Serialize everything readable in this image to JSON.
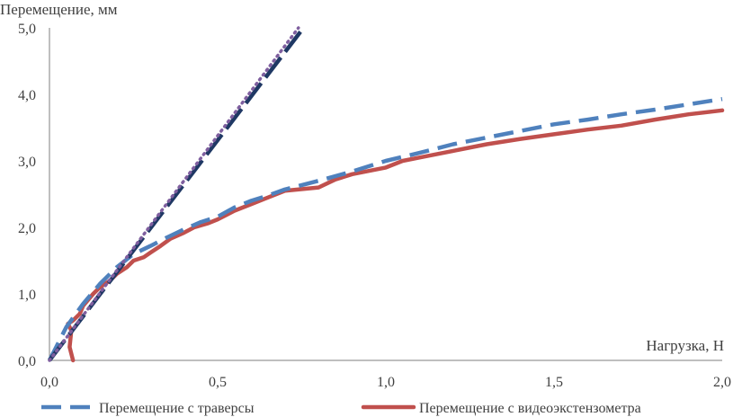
{
  "chart_data": {
    "type": "line",
    "xlabel": "Нагрузка, Н",
    "ylabel": "Перемещение, мм",
    "xlim": [
      0,
      2
    ],
    "ylim": [
      0,
      5
    ],
    "x_ticks": [
      "0,0",
      "0,5",
      "1,0",
      "1,5",
      "2,0"
    ],
    "y_ticks": [
      "0,0",
      "1,0",
      "2,0",
      "3,0",
      "4,0",
      "5,0"
    ],
    "grid": false,
    "legend_position": "bottom",
    "series": [
      {
        "name": "Перемещение с траверсы",
        "color": "#4f81bd",
        "style": "dashed",
        "x": [
          0.0,
          0.05,
          0.1,
          0.15,
          0.2,
          0.25,
          0.3,
          0.35,
          0.4,
          0.45,
          0.5,
          0.55,
          0.6,
          0.65,
          0.7,
          0.8,
          0.9,
          1.0,
          1.1,
          1.2,
          1.3,
          1.4,
          1.5,
          1.6,
          1.7,
          1.8,
          1.9,
          2.0
        ],
        "y": [
          0.0,
          0.5,
          0.85,
          1.15,
          1.4,
          1.6,
          1.72,
          1.85,
          1.97,
          2.08,
          2.16,
          2.3,
          2.4,
          2.48,
          2.57,
          2.7,
          2.84,
          3.0,
          3.12,
          3.25,
          3.35,
          3.45,
          3.55,
          3.62,
          3.7,
          3.77,
          3.85,
          3.93
        ]
      },
      {
        "name": "Перемещение с видеоэкстензометра",
        "color": "#c0504d",
        "style": "solid",
        "x": [
          0.07,
          0.06,
          0.065,
          0.055,
          0.07,
          0.09,
          0.1,
          0.13,
          0.15,
          0.18,
          0.2,
          0.23,
          0.25,
          0.28,
          0.3,
          0.33,
          0.36,
          0.4,
          0.43,
          0.47,
          0.5,
          0.55,
          0.6,
          0.65,
          0.7,
          0.8,
          0.85,
          0.9,
          1.0,
          1.05,
          1.1,
          1.2,
          1.3,
          1.4,
          1.5,
          1.6,
          1.7,
          1.8,
          1.9,
          2.0
        ],
        "y": [
          0.0,
          0.2,
          0.45,
          0.55,
          0.6,
          0.7,
          0.82,
          1.0,
          1.1,
          1.2,
          1.3,
          1.4,
          1.5,
          1.55,
          1.62,
          1.72,
          1.83,
          1.92,
          2.0,
          2.06,
          2.12,
          2.25,
          2.35,
          2.45,
          2.55,
          2.6,
          2.72,
          2.8,
          2.9,
          3.0,
          3.05,
          3.15,
          3.25,
          3.33,
          3.4,
          3.47,
          3.53,
          3.62,
          3.7,
          3.76
        ]
      },
      {
        "name": "",
        "color": "#1f3864",
        "style": "longdash",
        "x": [
          0.0,
          0.755
        ],
        "y": [
          0.0,
          5.0
        ]
      },
      {
        "name": "",
        "color": "#7f5f9f",
        "style": "dotted",
        "x": [
          0.0,
          0.74
        ],
        "y": [
          0.0,
          5.0
        ]
      }
    ]
  }
}
